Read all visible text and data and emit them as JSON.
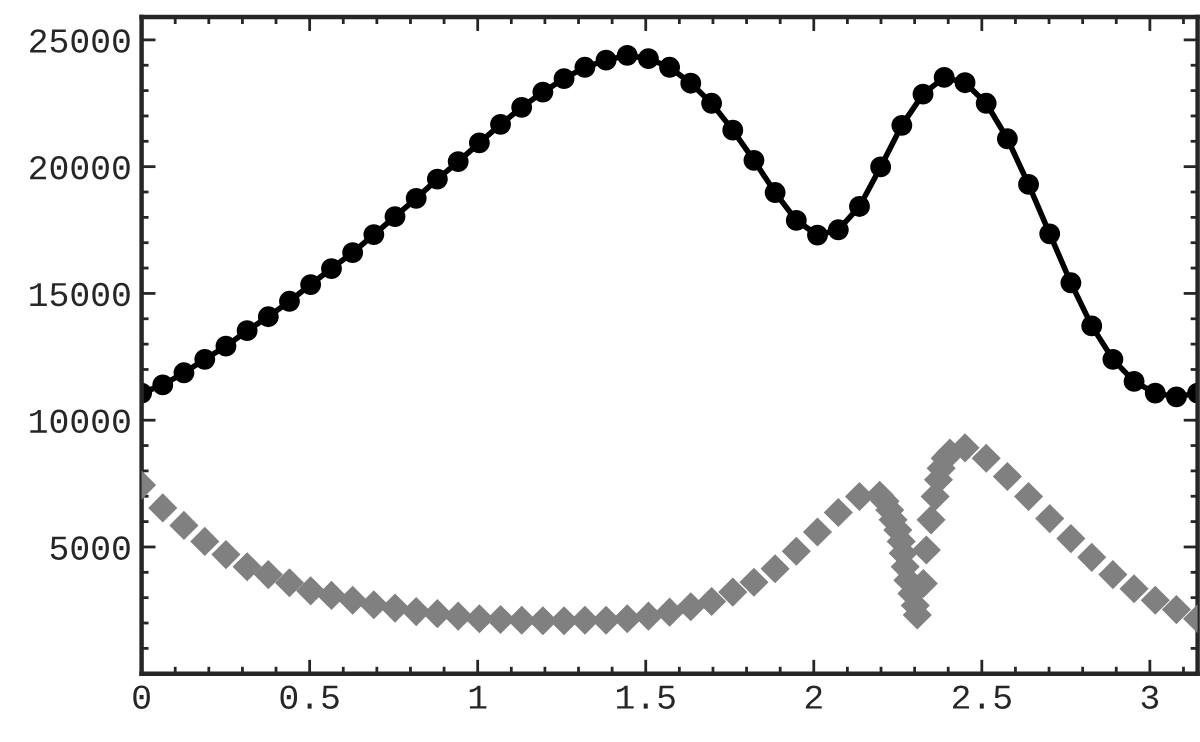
{
  "chart_data": {
    "type": "line",
    "xlim": [
      0,
      3.142
    ],
    "ylim": [
      0,
      25900
    ],
    "xticks": [
      0,
      0.5,
      1,
      1.5,
      2,
      2.5,
      3
    ],
    "yticks": [
      5000,
      10000,
      15000,
      20000,
      25000
    ],
    "grid": false,
    "series": [
      {
        "marker": "circle",
        "line_style": "solid",
        "color": "#000000",
        "x": [
          0,
          0.063,
          0.126,
          0.188,
          0.251,
          0.314,
          0.377,
          0.44,
          0.503,
          0.565,
          0.628,
          0.691,
          0.754,
          0.817,
          0.88,
          0.942,
          1.005,
          1.068,
          1.131,
          1.194,
          1.257,
          1.319,
          1.382,
          1.445,
          1.508,
          1.571,
          1.634,
          1.696,
          1.759,
          1.822,
          1.885,
          1.948,
          2.011,
          2.073,
          2.136,
          2.199,
          2.262,
          2.325,
          2.388,
          2.45,
          2.513,
          2.576,
          2.639,
          2.702,
          2.765,
          2.827,
          2.89,
          2.953,
          3.016,
          3.079,
          3.142
        ],
        "values": [
          11070,
          11390,
          11870,
          12400,
          12920,
          13530,
          14080,
          14690,
          15350,
          15980,
          16610,
          17320,
          18030,
          18750,
          19510,
          20200,
          20940,
          21670,
          22340,
          22940,
          23470,
          23920,
          24200,
          24390,
          24260,
          23920,
          23290,
          22500,
          21440,
          20250,
          18980,
          17880,
          17300,
          17510,
          18430,
          19990,
          21630,
          22860,
          23520,
          23310,
          22500,
          21100,
          19300,
          17350,
          15420,
          13720,
          12400,
          11530,
          11070,
          10920,
          11070
        ]
      },
      {
        "type": "scatter",
        "marker": "diamond",
        "color": "#808080",
        "x": [
          0,
          0.063,
          0.126,
          0.188,
          0.251,
          0.314,
          0.377,
          0.44,
          0.503,
          0.565,
          0.628,
          0.691,
          0.754,
          0.817,
          0.88,
          0.942,
          1.005,
          1.068,
          1.131,
          1.194,
          1.257,
          1.319,
          1.382,
          1.445,
          1.508,
          1.571,
          1.634,
          1.696,
          1.759,
          1.822,
          1.885,
          1.948,
          2.011,
          2.073,
          2.136,
          2.196,
          2.212,
          2.226,
          2.236,
          2.25,
          2.26,
          2.266,
          2.272,
          2.28,
          2.292,
          2.302,
          2.308,
          2.326,
          2.335,
          2.349,
          2.361,
          2.371,
          2.379,
          2.391,
          2.405,
          2.45,
          2.513,
          2.576,
          2.639,
          2.702,
          2.765,
          2.827,
          2.89,
          2.953,
          3.016,
          3.079,
          3.142
        ],
        "values": [
          7440,
          6540,
          5850,
          5220,
          4700,
          4220,
          3910,
          3590,
          3270,
          3090,
          2900,
          2720,
          2590,
          2450,
          2370,
          2270,
          2170,
          2140,
          2110,
          2090,
          2090,
          2110,
          2110,
          2170,
          2270,
          2430,
          2640,
          2850,
          3220,
          3610,
          4140,
          4830,
          5590,
          6360,
          6990,
          7040,
          6800,
          6460,
          6070,
          5670,
          5220,
          4750,
          4220,
          3690,
          3160,
          2690,
          2320,
          3560,
          4880,
          6070,
          6990,
          7650,
          8100,
          8500,
          8700,
          8910,
          8500,
          7780,
          6990,
          6120,
          5330,
          4590,
          3910,
          3350,
          2900,
          2530,
          2170
        ]
      }
    ]
  }
}
